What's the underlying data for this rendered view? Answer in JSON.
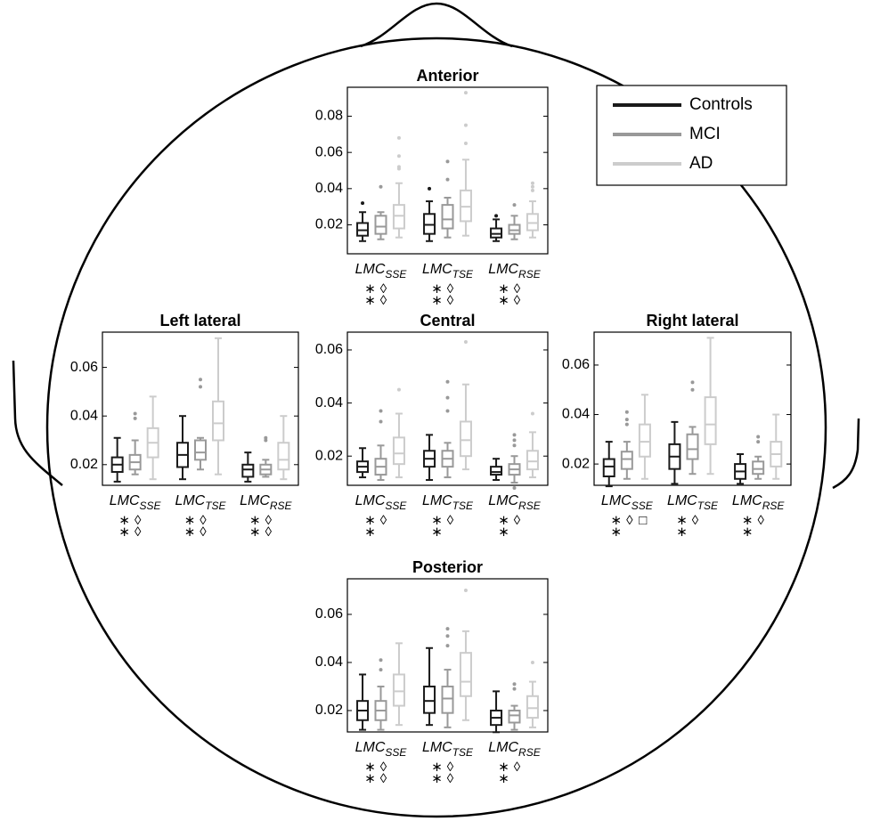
{
  "legend": {
    "position": "upper right",
    "series": [
      {
        "name": "Controls",
        "color": "#1a1a1a"
      },
      {
        "name": "MCI",
        "color": "#999999"
      },
      {
        "name": "AD",
        "color": "#cccccc"
      }
    ]
  },
  "chart_data": [
    {
      "type": "box",
      "title": "Anterior",
      "ylim": [
        0.004,
        0.096
      ],
      "yticks": [
        0.02,
        0.04,
        0.06,
        0.08
      ],
      "categories": [
        "LMC",
        "LMC",
        "LMC"
      ],
      "subscripts": [
        "SSE",
        "TSE",
        "RSE"
      ],
      "annotations": [
        [
          [
            "∗",
            "∗"
          ],
          [
            "◊",
            "◊"
          ]
        ],
        [
          [
            "∗",
            "∗"
          ],
          [
            "◊",
            "◊"
          ]
        ],
        [
          [
            "∗",
            "∗"
          ],
          [
            "◊",
            "◊"
          ]
        ]
      ],
      "boxes": [
        [
          {
            "whislo": 0.011,
            "q1": 0.014,
            "med": 0.017,
            "q3": 0.021,
            "whishi": 0.027,
            "outliers": [
              0.032
            ]
          },
          {
            "whislo": 0.012,
            "q1": 0.015,
            "med": 0.019,
            "q3": 0.025,
            "whishi": 0.027,
            "outliers": [
              0.041
            ]
          },
          {
            "whislo": 0.013,
            "q1": 0.018,
            "med": 0.025,
            "q3": 0.031,
            "whishi": 0.043,
            "outliers": [
              0.051,
              0.052,
              0.058,
              0.068
            ]
          }
        ],
        [
          {
            "whislo": 0.011,
            "q1": 0.015,
            "med": 0.02,
            "q3": 0.026,
            "whishi": 0.033,
            "outliers": [
              0.04
            ]
          },
          {
            "whislo": 0.013,
            "q1": 0.018,
            "med": 0.023,
            "q3": 0.031,
            "whishi": 0.035,
            "outliers": [
              0.045,
              0.055
            ]
          },
          {
            "whislo": 0.014,
            "q1": 0.022,
            "med": 0.03,
            "q3": 0.039,
            "whishi": 0.056,
            "outliers": [
              0.065,
              0.075,
              0.093
            ]
          }
        ],
        [
          {
            "whislo": 0.011,
            "q1": 0.013,
            "med": 0.015,
            "q3": 0.018,
            "whishi": 0.023,
            "outliers": [
              0.025
            ]
          },
          {
            "whislo": 0.012,
            "q1": 0.015,
            "med": 0.017,
            "q3": 0.02,
            "whishi": 0.025,
            "outliers": [
              0.031
            ]
          },
          {
            "whislo": 0.013,
            "q1": 0.017,
            "med": 0.021,
            "q3": 0.026,
            "whishi": 0.033,
            "outliers": [
              0.039,
              0.041,
              0.043
            ]
          }
        ]
      ]
    },
    {
      "type": "box",
      "title": "Left lateral",
      "ylim": [
        0.0115,
        0.0745
      ],
      "yticks": [
        0.02,
        0.04,
        0.06
      ],
      "categories": [
        "LMC",
        "LMC",
        "LMC"
      ],
      "subscripts": [
        "SSE",
        "TSE",
        "RSE"
      ],
      "annotations": [
        [
          [
            "∗",
            "∗"
          ],
          [
            "◊",
            "◊"
          ]
        ],
        [
          [
            "∗",
            "∗"
          ],
          [
            "◊",
            "◊"
          ]
        ],
        [
          [
            "∗",
            "∗"
          ],
          [
            "◊",
            "◊"
          ]
        ]
      ],
      "boxes": [
        [
          {
            "whislo": 0.013,
            "q1": 0.017,
            "med": 0.02,
            "q3": 0.023,
            "whishi": 0.031,
            "outliers": []
          },
          {
            "whislo": 0.016,
            "q1": 0.018,
            "med": 0.021,
            "q3": 0.024,
            "whishi": 0.03,
            "outliers": [
              0.039,
              0.041
            ]
          },
          {
            "whislo": 0.014,
            "q1": 0.023,
            "med": 0.029,
            "q3": 0.035,
            "whishi": 0.048,
            "outliers": []
          }
        ],
        [
          {
            "whislo": 0.014,
            "q1": 0.019,
            "med": 0.024,
            "q3": 0.029,
            "whishi": 0.04,
            "outliers": []
          },
          {
            "whislo": 0.018,
            "q1": 0.022,
            "med": 0.025,
            "q3": 0.03,
            "whishi": 0.031,
            "outliers": [
              0.052,
              0.055
            ]
          },
          {
            "whislo": 0.016,
            "q1": 0.03,
            "med": 0.037,
            "q3": 0.046,
            "whishi": 0.072,
            "outliers": []
          }
        ],
        [
          {
            "whislo": 0.013,
            "q1": 0.015,
            "med": 0.018,
            "q3": 0.02,
            "whishi": 0.025,
            "outliers": []
          },
          {
            "whislo": 0.015,
            "q1": 0.016,
            "med": 0.018,
            "q3": 0.02,
            "whishi": 0.022,
            "outliers": [
              0.03,
              0.031
            ]
          },
          {
            "whislo": 0.014,
            "q1": 0.018,
            "med": 0.022,
            "q3": 0.029,
            "whishi": 0.04,
            "outliers": []
          }
        ]
      ]
    },
    {
      "type": "box",
      "title": "Central",
      "ylim": [
        0.009,
        0.0667
      ],
      "yticks": [
        0.02,
        0.04,
        0.06
      ],
      "categories": [
        "LMC",
        "LMC",
        "LMC"
      ],
      "subscripts": [
        "SSE",
        "TSE",
        "RSE"
      ],
      "annotations": [
        [
          [
            "∗",
            "∗"
          ],
          [
            "◊"
          ]
        ],
        [
          [
            "∗",
            "∗"
          ],
          [
            "◊"
          ]
        ],
        [
          [
            "∗",
            "∗"
          ],
          [
            "◊"
          ]
        ]
      ],
      "boxes": [
        [
          {
            "whislo": 0.012,
            "q1": 0.014,
            "med": 0.016,
            "q3": 0.018,
            "whishi": 0.023,
            "outliers": []
          },
          {
            "whislo": 0.011,
            "q1": 0.013,
            "med": 0.016,
            "q3": 0.019,
            "whishi": 0.024,
            "outliers": [
              0.033,
              0.037
            ]
          },
          {
            "whislo": 0.012,
            "q1": 0.017,
            "med": 0.021,
            "q3": 0.027,
            "whishi": 0.036,
            "outliers": [
              0.045
            ]
          }
        ],
        [
          {
            "whislo": 0.011,
            "q1": 0.016,
            "med": 0.019,
            "q3": 0.022,
            "whishi": 0.028,
            "outliers": []
          },
          {
            "whislo": 0.012,
            "q1": 0.016,
            "med": 0.019,
            "q3": 0.022,
            "whishi": 0.025,
            "outliers": [
              0.037,
              0.042,
              0.048
            ]
          },
          {
            "whislo": 0.015,
            "q1": 0.02,
            "med": 0.026,
            "q3": 0.033,
            "whishi": 0.047,
            "outliers": [
              0.063
            ]
          }
        ],
        [
          {
            "whislo": 0.011,
            "q1": 0.013,
            "med": 0.014,
            "q3": 0.016,
            "whishi": 0.019,
            "outliers": []
          },
          {
            "whislo": 0.01,
            "q1": 0.013,
            "med": 0.015,
            "q3": 0.017,
            "whishi": 0.02,
            "outliers": [
              0.008,
              0.024,
              0.026,
              0.028
            ]
          },
          {
            "whislo": 0.012,
            "q1": 0.015,
            "med": 0.018,
            "q3": 0.022,
            "whishi": 0.029,
            "outliers": [
              0.036
            ]
          }
        ]
      ]
    },
    {
      "type": "box",
      "title": "Right lateral",
      "ylim": [
        0.0114,
        0.0733
      ],
      "yticks": [
        0.02,
        0.04,
        0.06
      ],
      "categories": [
        "LMC",
        "LMC",
        "LMC"
      ],
      "subscripts": [
        "SSE",
        "TSE",
        "RSE"
      ],
      "annotations": [
        [
          [
            "∗",
            "∗"
          ],
          [
            "◊"
          ],
          [
            "□"
          ]
        ],
        [
          [
            "∗",
            "∗"
          ],
          [
            "◊"
          ]
        ],
        [
          [
            "∗",
            "∗"
          ],
          [
            "◊"
          ]
        ]
      ],
      "boxes": [
        [
          {
            "whislo": 0.011,
            "q1": 0.015,
            "med": 0.019,
            "q3": 0.022,
            "whishi": 0.029,
            "outliers": []
          },
          {
            "whislo": 0.014,
            "q1": 0.018,
            "med": 0.022,
            "q3": 0.025,
            "whishi": 0.029,
            "outliers": [
              0.036,
              0.038,
              0.041
            ]
          },
          {
            "whislo": 0.014,
            "q1": 0.023,
            "med": 0.029,
            "q3": 0.036,
            "whishi": 0.048,
            "outliers": []
          }
        ],
        [
          {
            "whislo": 0.012,
            "q1": 0.018,
            "med": 0.023,
            "q3": 0.028,
            "whishi": 0.037,
            "outliers": []
          },
          {
            "whislo": 0.016,
            "q1": 0.022,
            "med": 0.026,
            "q3": 0.032,
            "whishi": 0.035,
            "outliers": [
              0.05,
              0.053
            ]
          },
          {
            "whislo": 0.016,
            "q1": 0.028,
            "med": 0.036,
            "q3": 0.047,
            "whishi": 0.071,
            "outliers": []
          }
        ],
        [
          {
            "whislo": 0.012,
            "q1": 0.014,
            "med": 0.017,
            "q3": 0.02,
            "whishi": 0.024,
            "outliers": []
          },
          {
            "whislo": 0.014,
            "q1": 0.016,
            "med": 0.018,
            "q3": 0.021,
            "whishi": 0.023,
            "outliers": [
              0.029,
              0.031
            ]
          },
          {
            "whislo": 0.014,
            "q1": 0.019,
            "med": 0.024,
            "q3": 0.029,
            "whishi": 0.04,
            "outliers": []
          }
        ]
      ]
    },
    {
      "type": "box",
      "title": "Posterior",
      "ylim": [
        0.0111,
        0.0748
      ],
      "yticks": [
        0.02,
        0.04,
        0.06
      ],
      "categories": [
        "LMC",
        "LMC",
        "LMC"
      ],
      "subscripts": [
        "SSE",
        "TSE",
        "RSE"
      ],
      "annotations": [
        [
          [
            "∗",
            "∗"
          ],
          [
            "◊",
            "◊"
          ]
        ],
        [
          [
            "∗",
            "∗"
          ],
          [
            "◊",
            "◊"
          ]
        ],
        [
          [
            "∗",
            "∗"
          ],
          [
            "◊"
          ]
        ]
      ],
      "boxes": [
        [
          {
            "whislo": 0.012,
            "q1": 0.016,
            "med": 0.02,
            "q3": 0.024,
            "whishi": 0.035,
            "outliers": []
          },
          {
            "whislo": 0.012,
            "q1": 0.016,
            "med": 0.02,
            "q3": 0.024,
            "whishi": 0.03,
            "outliers": [
              0.037,
              0.041
            ]
          },
          {
            "whislo": 0.014,
            "q1": 0.022,
            "med": 0.028,
            "q3": 0.035,
            "whishi": 0.048,
            "outliers": []
          }
        ],
        [
          {
            "whislo": 0.014,
            "q1": 0.019,
            "med": 0.024,
            "q3": 0.03,
            "whishi": 0.046,
            "outliers": []
          },
          {
            "whislo": 0.013,
            "q1": 0.019,
            "med": 0.025,
            "q3": 0.03,
            "whishi": 0.037,
            "outliers": [
              0.047,
              0.051,
              0.054
            ]
          },
          {
            "whislo": 0.016,
            "q1": 0.026,
            "med": 0.032,
            "q3": 0.044,
            "whishi": 0.053,
            "outliers": [
              0.07
            ]
          }
        ],
        [
          {
            "whislo": 0.011,
            "q1": 0.014,
            "med": 0.017,
            "q3": 0.02,
            "whishi": 0.028,
            "outliers": []
          },
          {
            "whislo": 0.012,
            "q1": 0.015,
            "med": 0.018,
            "q3": 0.02,
            "whishi": 0.022,
            "outliers": [
              0.029,
              0.031
            ]
          },
          {
            "whislo": 0.013,
            "q1": 0.017,
            "med": 0.021,
            "q3": 0.026,
            "whishi": 0.032,
            "outliers": [
              0.04
            ]
          }
        ]
      ]
    }
  ]
}
